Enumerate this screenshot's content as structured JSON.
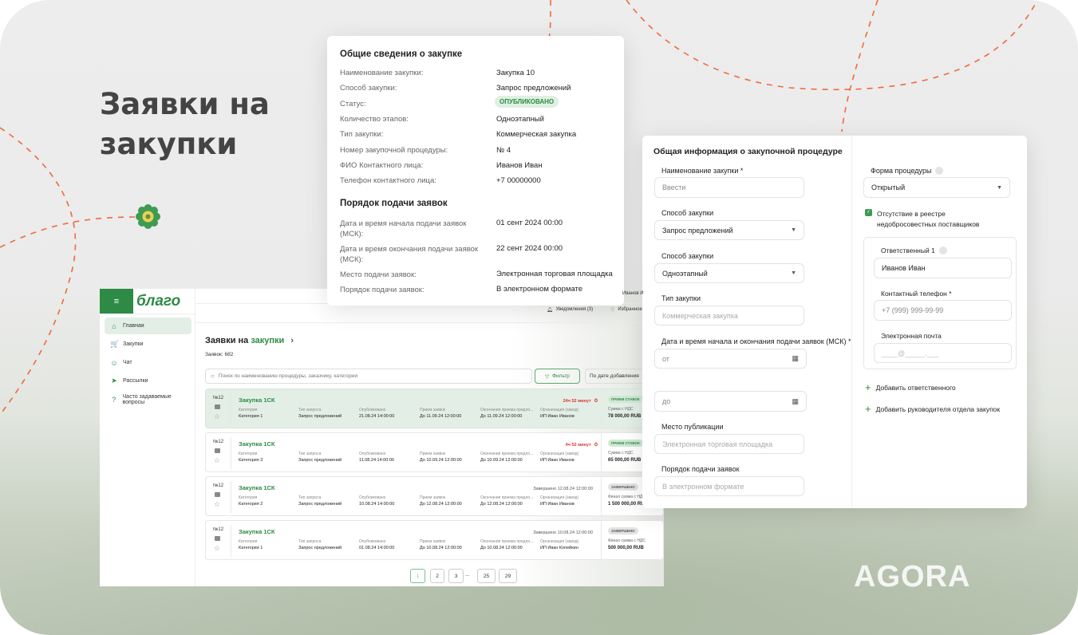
{
  "hero": {
    "line1": "Заявки на",
    "line2": "закупки"
  },
  "brand": {
    "logo": "благо",
    "watermark": "AGORA",
    "accent": "#2e8b45",
    "dash": "#f06a3c"
  },
  "card_general": {
    "title": "Общие сведения о закупке",
    "rows": [
      {
        "label": "Наименование закупки:",
        "value": "Закупка 10"
      },
      {
        "label": "Способ закупки:",
        "value": "Запрос предложений"
      },
      {
        "label": "Статус:",
        "value": "ОПУБЛИКОВАНО"
      },
      {
        "label": "Количество этапов:",
        "value": "Одноэтапный"
      },
      {
        "label": "Тип закупки:",
        "value": "Коммерческая закупка"
      },
      {
        "label": "Номер закупочной процедуры:",
        "value": "№ 4"
      },
      {
        "label": "ФИО Контактного лица:",
        "value": "Иванов Иван"
      },
      {
        "label": "Телефон контактного лица:",
        "value": "+7 00000000"
      }
    ],
    "section2": "Порядок подачи заявок",
    "rows2": [
      {
        "label": "Дата и время начала подачи заявок (МСК):",
        "value": "01 сент 2024 00:00"
      },
      {
        "label": "Дата и время окончания подачи заявок (МСК):",
        "value": "22 сент 2024 00:00"
      },
      {
        "label": "Место подачи заявок:",
        "value": "Электронная торговая площадка"
      },
      {
        "label": "Порядок подачи заявок:",
        "value": "В электронном формате"
      }
    ]
  },
  "card_form": {
    "title": "Общая информация о закупочной процедуре",
    "name_label": "Наименование закупки *",
    "name_placeholder": "Ввести",
    "method_label": "Способ закупки",
    "method_value": "Запрос предложений",
    "stages_label": "Способ закупки",
    "stages_value": "Одноэтапный",
    "type_label": "Тип закупки",
    "type_placeholder": "Коммерческая закупка",
    "dates_label": "Дата и время начала и окончания подачи заявок (МСК) *",
    "from_placeholder": "от",
    "to_placeholder": "до",
    "place_label": "Место публикации",
    "place_placeholder": "Электронная торговая площадка",
    "order_label": "Порядок подачи заявок",
    "order_placeholder": "В электронном формате",
    "form_label": "Форма процедуры",
    "form_value": "Открытый",
    "checkbox_label": "Отсутствие в реестре недобросовестных поставщиков",
    "checkbox_checked": true,
    "resp_label": "Ответственный 1",
    "resp_value": "Иванов Иван",
    "phone_label": "Контактный телефон *",
    "phone_placeholder": "+7 (999) 999-99-99",
    "email_label": "Электронная почта",
    "email_placeholder": "____@_____.___",
    "add_resp": "Добавить ответственного",
    "add_head": "Добавить руководителя отдела закупок"
  },
  "app": {
    "sidebar": [
      {
        "label": "Главная",
        "icon": "home-icon",
        "glyph": "⌂"
      },
      {
        "label": "Закупки",
        "icon": "cart-icon",
        "glyph": "🛒"
      },
      {
        "label": "Чат",
        "icon": "chat-icon",
        "glyph": "☺"
      },
      {
        "label": "Рассылки",
        "icon": "send-icon",
        "glyph": "➤"
      },
      {
        "label": "Часто задаваемые вопросы",
        "icon": "question-icon",
        "glyph": "?"
      }
    ],
    "user": "Иванов И",
    "notifications": "Уведомления (3)",
    "favorites": "Избранное",
    "title_a": "Заявки на ",
    "title_b": "закупки",
    "count": "Заявок: 682",
    "search_placeholder": "Поиск по наименованию процедуры, заказчику, категории",
    "filter": "Фильтр",
    "sort": "По дате добавления",
    "col_labels": [
      "Категория",
      "Тип запроса",
      "Опубликовано",
      "Прием заявок",
      "Окончания приема предло...",
      "Организация (завод)"
    ],
    "rows": [
      {
        "num": "№12",
        "title": "Закупка 1СК",
        "values": [
          "Категория 1",
          "Запрос предложений",
          "21.08.24 14:00:00",
          "До 11.09.24 12:00:00",
          "До 11.09.24 12:00:00",
          "ИП Иван Иванов"
        ],
        "timer": "24ч 52 минут",
        "badge": "ПРИЕМ СТАВОК",
        "sum_label": "Сумма с НДС",
        "sum": "78 000,00 RUB"
      },
      {
        "num": "№12",
        "title": "Закупка 1СК",
        "values": [
          "Категория 3",
          "Запрос предложений",
          "11.08.24 14:00:00",
          "До 10.09.24 12:00:00",
          "До 10.09.24 12:00:00",
          "ИП Иван Иванов"
        ],
        "timer": "4ч 52 минут",
        "badge": "ПРИЕМ СТАВОК",
        "sum_label": "Сумма с НДС",
        "sum": "65 000,00 RUB"
      },
      {
        "num": "№12",
        "title": "Закупка 1СК",
        "values": [
          "Категория 2",
          "Запрос предложений",
          "10.08.24 14:00:00",
          "До 12.08.24 12:00:00",
          "До 12.08.24 12:00:00",
          "ИП Иван Иванов"
        ],
        "done": "Завершено 12.08.24 12:00:00",
        "badge": "ЗАВЕРШЕНО",
        "sum_label": "Финал сумма с НДС",
        "sum": "1 500 000,00 RUB"
      },
      {
        "num": "№12",
        "title": "Закупка 1СК",
        "values": [
          "Категория 1",
          "Запрос предложений",
          "01.08.24 14:00:00",
          "До 10.08.24 12:00:00",
          "До 10.08.24 12:00:00",
          "ИП Иван Копейкин"
        ],
        "done": "Завершено 10.08.24 12:00:00",
        "badge": "ЗАВЕРШЕНО",
        "sum_label": "Финал сумма с НДС",
        "sum": "500 000,00 RUB"
      }
    ],
    "pages": [
      "1",
      "2",
      "3",
      "...",
      "25",
      "29"
    ],
    "current_page": "1"
  }
}
